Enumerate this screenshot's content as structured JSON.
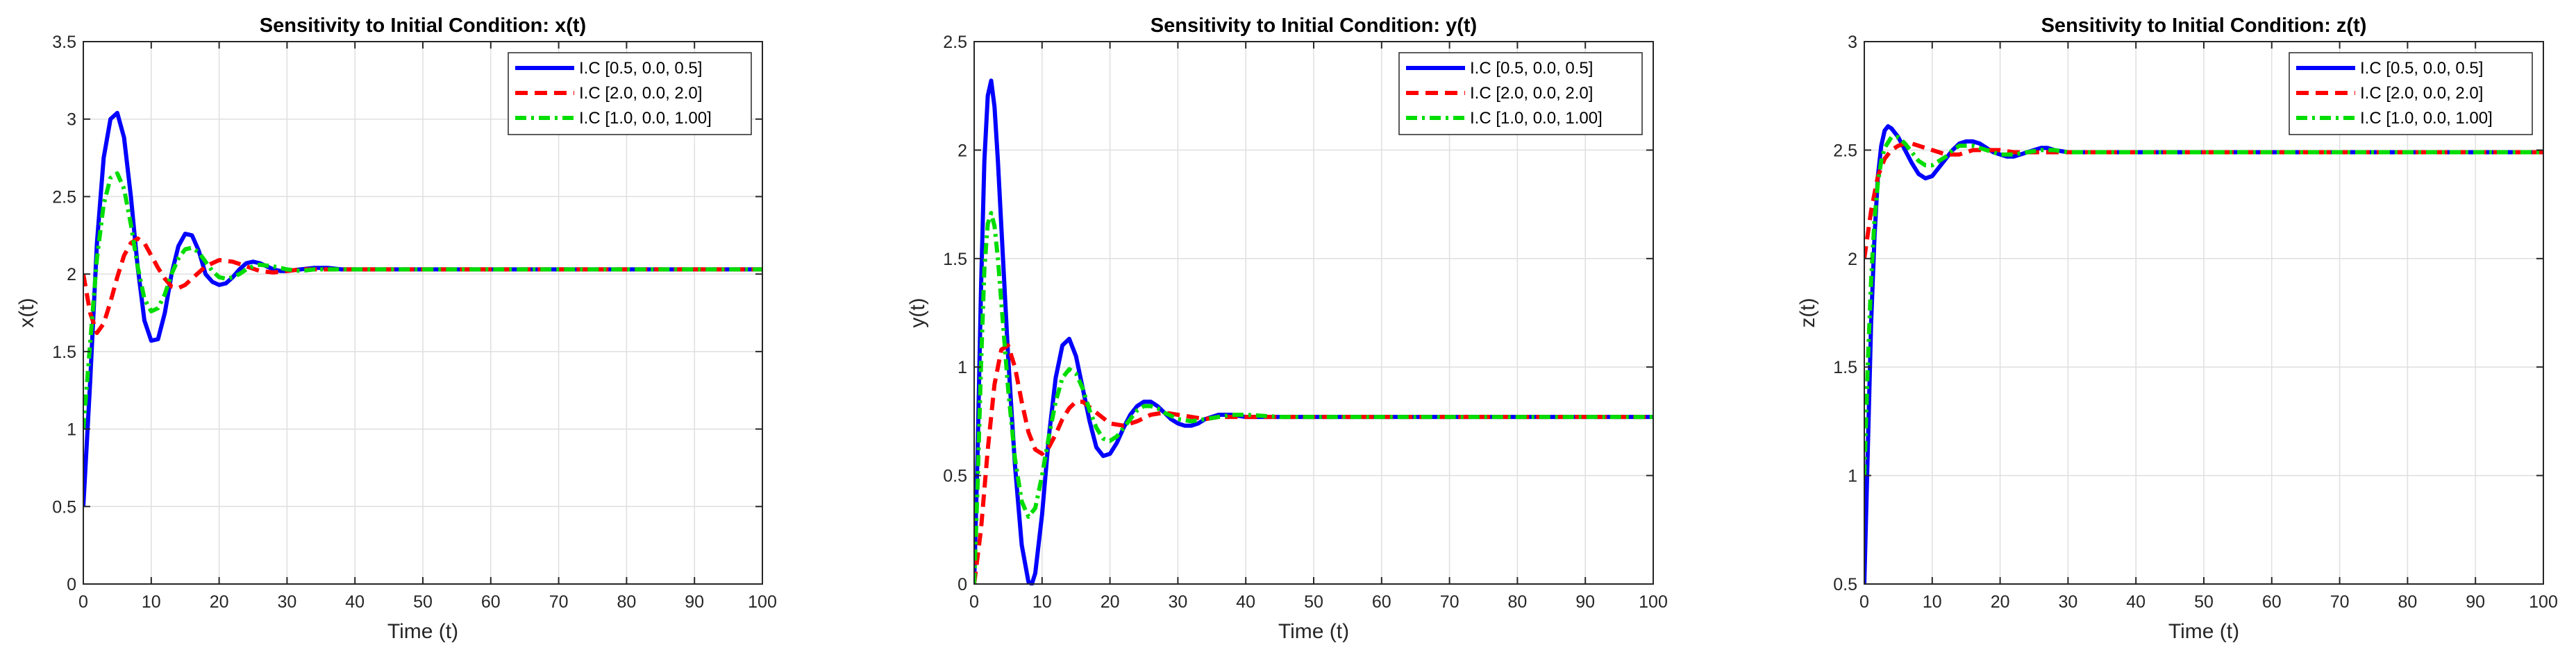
{
  "chart_data": [
    {
      "type": "line",
      "title": "Sensitivity to Initial Condition: x(t)",
      "xlabel": "Time (t)",
      "ylabel": "x(t)",
      "xlim": [
        0,
        100
      ],
      "ylim": [
        0,
        3.5
      ],
      "xticks": [
        "0",
        "10",
        "20",
        "30",
        "40",
        "50",
        "60",
        "70",
        "80",
        "90",
        "100"
      ],
      "yticks": [
        "0",
        "0.5",
        "1",
        "1.5",
        "2",
        "2.5",
        "3",
        "3.5"
      ],
      "grid": true,
      "legend_position": "top-right",
      "series": [
        {
          "name": "I.C [0.5, 0.0, 0.5]",
          "color": "#0000ff",
          "style": "solid",
          "x": [
            0,
            1,
            2,
            3,
            4,
            5,
            6,
            7,
            8,
            9,
            10,
            11,
            12,
            13,
            14,
            15,
            16,
            17,
            18,
            19,
            20,
            21,
            22,
            23,
            24,
            25,
            26,
            27,
            28,
            29,
            30,
            32,
            34,
            36,
            38,
            40,
            42,
            44,
            46,
            48,
            50,
            55,
            60,
            70,
            80,
            90,
            100
          ],
          "y": [
            0.5,
            1.3,
            2.2,
            2.75,
            3.0,
            3.04,
            2.88,
            2.5,
            2.05,
            1.7,
            1.57,
            1.58,
            1.75,
            2.0,
            2.18,
            2.26,
            2.25,
            2.15,
            2.0,
            1.95,
            1.93,
            1.94,
            1.98,
            2.03,
            2.07,
            2.08,
            2.07,
            2.05,
            2.03,
            2.02,
            2.02,
            2.03,
            2.04,
            2.04,
            2.03,
            2.03,
            2.03,
            2.03,
            2.03,
            2.03,
            2.03,
            2.03,
            2.03,
            2.03,
            2.03,
            2.03,
            2.03
          ]
        },
        {
          "name": "I.C [2.0, 0.0, 2.0]",
          "color": "#ff0000",
          "style": "dashed",
          "x": [
            0,
            1,
            2,
            3,
            4,
            5,
            6,
            7,
            8,
            9,
            10,
            11,
            12,
            13,
            14,
            15,
            16,
            18,
            20,
            22,
            24,
            26,
            28,
            30,
            32,
            34,
            36,
            40,
            45,
            50,
            60,
            70,
            80,
            90,
            100
          ],
          "y": [
            2.0,
            1.75,
            1.62,
            1.68,
            1.82,
            1.98,
            2.12,
            2.2,
            2.23,
            2.2,
            2.12,
            2.04,
            1.97,
            1.92,
            1.91,
            1.93,
            1.97,
            2.05,
            2.09,
            2.08,
            2.05,
            2.02,
            2.01,
            2.02,
            2.03,
            2.03,
            2.03,
            2.03,
            2.03,
            2.03,
            2.03,
            2.03,
            2.03,
            2.03,
            2.03
          ]
        },
        {
          "name": "I.C [1.0, 0.0, 1.00]",
          "color": "#00dd00",
          "style": "dashdot",
          "x": [
            0,
            1,
            2,
            3,
            4,
            5,
            6,
            7,
            8,
            9,
            10,
            11,
            12,
            13,
            14,
            15,
            16,
            17,
            18,
            19,
            20,
            21,
            22,
            23,
            24,
            25,
            26,
            28,
            30,
            32,
            34,
            36,
            40,
            45,
            50,
            60,
            70,
            80,
            90,
            100
          ],
          "y": [
            1.0,
            1.55,
            2.1,
            2.45,
            2.62,
            2.65,
            2.55,
            2.32,
            2.05,
            1.84,
            1.76,
            1.78,
            1.87,
            2.0,
            2.1,
            2.16,
            2.17,
            2.14,
            2.08,
            2.02,
            1.98,
            1.97,
            1.98,
            2.0,
            2.03,
            2.05,
            2.06,
            2.05,
            2.03,
            2.02,
            2.03,
            2.03,
            2.03,
            2.03,
            2.03,
            2.03,
            2.03,
            2.03,
            2.03,
            2.03
          ]
        }
      ]
    },
    {
      "type": "line",
      "title": "Sensitivity to Initial Condition: y(t)",
      "xlabel": "Time (t)",
      "ylabel": "y(t)",
      "xlim": [
        0,
        100
      ],
      "ylim": [
        0,
        2.5
      ],
      "xticks": [
        "0",
        "10",
        "20",
        "30",
        "40",
        "50",
        "60",
        "70",
        "80",
        "90",
        "100"
      ],
      "yticks": [
        "0",
        "0.5",
        "1",
        "1.5",
        "2",
        "2.5"
      ],
      "grid": true,
      "legend_position": "top-right",
      "series": [
        {
          "name": "I.C [0.5, 0.0, 0.5]",
          "color": "#0000ff",
          "style": "solid",
          "x": [
            0,
            0.5,
            1,
            1.5,
            2,
            2.5,
            3,
            3.5,
            4,
            5,
            6,
            7,
            8,
            8.5,
            9,
            10,
            11,
            12,
            13,
            14,
            15,
            16,
            17,
            18,
            19,
            20,
            21,
            22,
            23,
            24,
            25,
            26,
            27,
            28,
            29,
            30,
            31,
            32,
            33,
            34,
            36,
            38,
            40,
            42,
            45,
            50,
            55,
            60,
            70,
            80,
            90,
            100
          ],
          "y": [
            0.0,
            0.6,
            1.35,
            1.95,
            2.25,
            2.32,
            2.2,
            1.95,
            1.65,
            1.05,
            0.55,
            0.18,
            0.01,
            0.0,
            0.05,
            0.32,
            0.68,
            0.95,
            1.1,
            1.13,
            1.05,
            0.9,
            0.75,
            0.63,
            0.59,
            0.6,
            0.65,
            0.72,
            0.78,
            0.82,
            0.84,
            0.84,
            0.82,
            0.79,
            0.76,
            0.74,
            0.73,
            0.73,
            0.74,
            0.76,
            0.78,
            0.78,
            0.77,
            0.77,
            0.77,
            0.77,
            0.77,
            0.77,
            0.77,
            0.77,
            0.77,
            0.77
          ]
        },
        {
          "name": "I.C [2.0, 0.0, 2.0]",
          "color": "#ff0000",
          "style": "dashed",
          "x": [
            0,
            1,
            2,
            3,
            4,
            5,
            6,
            7,
            8,
            9,
            10,
            11,
            12,
            13,
            14,
            15,
            16,
            18,
            20,
            22,
            24,
            26,
            28,
            30,
            32,
            34,
            36,
            40,
            45,
            50,
            60,
            70,
            80,
            90,
            100
          ],
          "y": [
            0.0,
            0.25,
            0.62,
            0.92,
            1.08,
            1.1,
            1.0,
            0.84,
            0.7,
            0.62,
            0.6,
            0.63,
            0.69,
            0.76,
            0.81,
            0.84,
            0.84,
            0.79,
            0.74,
            0.73,
            0.75,
            0.78,
            0.79,
            0.78,
            0.77,
            0.76,
            0.77,
            0.77,
            0.77,
            0.77,
            0.77,
            0.77,
            0.77,
            0.77,
            0.77
          ]
        },
        {
          "name": "I.C [1.0, 0.0, 1.00]",
          "color": "#00dd00",
          "style": "dashdot",
          "x": [
            0,
            0.5,
            1,
            1.5,
            2,
            2.5,
            3,
            3.5,
            4,
            5,
            6,
            7,
            8,
            9,
            10,
            11,
            12,
            13,
            14,
            15,
            16,
            17,
            18,
            19,
            20,
            21,
            22,
            23,
            24,
            25,
            26,
            27,
            28,
            30,
            32,
            34,
            36,
            38,
            40,
            45,
            50,
            60,
            70,
            80,
            90,
            100
          ],
          "y": [
            0.0,
            0.45,
            1.0,
            1.45,
            1.66,
            1.71,
            1.65,
            1.5,
            1.3,
            0.9,
            0.58,
            0.38,
            0.31,
            0.35,
            0.5,
            0.68,
            0.84,
            0.95,
            0.99,
            0.97,
            0.9,
            0.8,
            0.72,
            0.67,
            0.66,
            0.68,
            0.72,
            0.76,
            0.8,
            0.82,
            0.82,
            0.81,
            0.79,
            0.76,
            0.75,
            0.76,
            0.77,
            0.78,
            0.78,
            0.77,
            0.77,
            0.77,
            0.77,
            0.77,
            0.77,
            0.77
          ]
        }
      ]
    },
    {
      "type": "line",
      "title": "Sensitivity to Initial Condition: z(t)",
      "xlabel": "Time (t)",
      "ylabel": "z(t)",
      "xlim": [
        0,
        100
      ],
      "ylim": [
        0.5,
        3
      ],
      "xticks": [
        "0",
        "10",
        "20",
        "30",
        "40",
        "50",
        "60",
        "70",
        "80",
        "90",
        "100"
      ],
      "yticks": [
        "0.5",
        "1",
        "1.5",
        "2",
        "2.5",
        "3"
      ],
      "grid": true,
      "legend_position": "top-right",
      "series": [
        {
          "name": "I.C [0.5, 0.0, 0.5]",
          "color": "#0000ff",
          "style": "solid",
          "x": [
            0,
            0.5,
            1,
            1.5,
            2,
            2.5,
            3,
            3.5,
            4,
            5,
            6,
            7,
            8,
            9,
            10,
            11,
            12,
            13,
            14,
            15,
            16,
            17,
            18,
            19,
            20,
            21,
            22,
            23,
            24,
            25,
            26,
            27,
            28,
            30,
            32,
            34,
            36,
            40,
            45,
            50,
            60,
            70,
            80,
            90,
            100
          ],
          "y": [
            0.5,
            1.1,
            1.7,
            2.1,
            2.38,
            2.52,
            2.59,
            2.61,
            2.6,
            2.56,
            2.5,
            2.44,
            2.39,
            2.37,
            2.38,
            2.42,
            2.46,
            2.5,
            2.53,
            2.54,
            2.54,
            2.53,
            2.51,
            2.49,
            2.48,
            2.47,
            2.47,
            2.48,
            2.49,
            2.5,
            2.51,
            2.51,
            2.5,
            2.49,
            2.49,
            2.49,
            2.49,
            2.49,
            2.49,
            2.49,
            2.49,
            2.49,
            2.49,
            2.49,
            2.49
          ]
        },
        {
          "name": "I.C [2.0, 0.0, 2.0]",
          "color": "#ff0000",
          "style": "dashed",
          "x": [
            0,
            1,
            2,
            3,
            4,
            5,
            6,
            7,
            8,
            9,
            10,
            11,
            12,
            13,
            14,
            15,
            16,
            18,
            20,
            22,
            24,
            26,
            28,
            30,
            35,
            40,
            50,
            60,
            70,
            80,
            90,
            100
          ],
          "y": [
            2.0,
            2.22,
            2.38,
            2.46,
            2.5,
            2.52,
            2.53,
            2.53,
            2.52,
            2.51,
            2.5,
            2.49,
            2.48,
            2.48,
            2.48,
            2.49,
            2.5,
            2.5,
            2.5,
            2.49,
            2.49,
            2.49,
            2.49,
            2.49,
            2.49,
            2.49,
            2.49,
            2.49,
            2.49,
            2.49,
            2.49,
            2.49
          ]
        },
        {
          "name": "I.C [1.0, 0.0, 1.00]",
          "color": "#00dd00",
          "style": "dashdot",
          "x": [
            0,
            0.5,
            1,
            1.5,
            2,
            2.5,
            3,
            4,
            5,
            6,
            7,
            8,
            9,
            10,
            11,
            12,
            13,
            14,
            15,
            16,
            17,
            18,
            19,
            20,
            22,
            24,
            26,
            28,
            30,
            35,
            40,
            50,
            60,
            70,
            80,
            90,
            100
          ],
          "y": [
            1.0,
            1.5,
            1.9,
            2.18,
            2.35,
            2.45,
            2.51,
            2.56,
            2.56,
            2.53,
            2.49,
            2.45,
            2.43,
            2.43,
            2.45,
            2.47,
            2.5,
            2.52,
            2.52,
            2.52,
            2.51,
            2.5,
            2.49,
            2.48,
            2.48,
            2.49,
            2.5,
            2.5,
            2.49,
            2.49,
            2.49,
            2.49,
            2.49,
            2.49,
            2.49,
            2.49,
            2.49
          ]
        }
      ]
    }
  ]
}
